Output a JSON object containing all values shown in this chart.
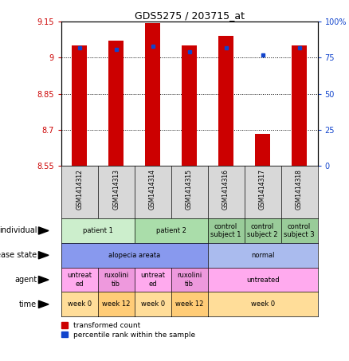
{
  "title": "GDS5275 / 203715_at",
  "samples": [
    "GSM1414312",
    "GSM1414313",
    "GSM1414314",
    "GSM1414315",
    "GSM1414316",
    "GSM1414317",
    "GSM1414318"
  ],
  "transformed_counts": [
    9.05,
    9.07,
    9.145,
    9.05,
    9.09,
    8.685,
    9.05
  ],
  "percentile_ranks": [
    82,
    81,
    83,
    79,
    82,
    77,
    82
  ],
  "ylim_left": [
    8.55,
    9.15
  ],
  "ylim_right": [
    0,
    100
  ],
  "yticks_left": [
    8.55,
    8.7,
    8.85,
    9.0,
    9.15
  ],
  "yticks_right": [
    0,
    25,
    50,
    75,
    100
  ],
  "ytick_labels_left": [
    "8.55",
    "8.7",
    "8.85",
    "9",
    "9.15"
  ],
  "ytick_labels_right": [
    "0",
    "25",
    "50",
    "75",
    "100%"
  ],
  "bar_color": "#cc0000",
  "dot_color": "#1144cc",
  "bar_bottom": 8.55,
  "annotation_rows": [
    {
      "name": "individual",
      "label": "individual",
      "groups": [
        {
          "cols": [
            0,
            1
          ],
          "text": "patient 1",
          "color": "#cceecc"
        },
        {
          "cols": [
            2,
            3
          ],
          "text": "patient 2",
          "color": "#aaddaa"
        },
        {
          "cols": [
            4
          ],
          "text": "control\nsubject 1",
          "color": "#99cc99"
        },
        {
          "cols": [
            5
          ],
          "text": "control\nsubject 2",
          "color": "#99cc99"
        },
        {
          "cols": [
            6
          ],
          "text": "control\nsubject 3",
          "color": "#99cc99"
        }
      ]
    },
    {
      "name": "disease_state",
      "label": "disease state",
      "groups": [
        {
          "cols": [
            0,
            1,
            2,
            3
          ],
          "text": "alopecia areata",
          "color": "#8899ee"
        },
        {
          "cols": [
            4,
            5,
            6
          ],
          "text": "normal",
          "color": "#aabbee"
        }
      ]
    },
    {
      "name": "agent",
      "label": "agent",
      "groups": [
        {
          "cols": [
            0
          ],
          "text": "untreat\ned",
          "color": "#ffaaee"
        },
        {
          "cols": [
            1
          ],
          "text": "ruxolini\ntib",
          "color": "#ee99dd"
        },
        {
          "cols": [
            2
          ],
          "text": "untreat\ned",
          "color": "#ffaaee"
        },
        {
          "cols": [
            3
          ],
          "text": "ruxolini\ntib",
          "color": "#ee99dd"
        },
        {
          "cols": [
            4,
            5,
            6
          ],
          "text": "untreated",
          "color": "#ffaaee"
        }
      ]
    },
    {
      "name": "time",
      "label": "time",
      "groups": [
        {
          "cols": [
            0
          ],
          "text": "week 0",
          "color": "#ffdd99"
        },
        {
          "cols": [
            1
          ],
          "text": "week 12",
          "color": "#ffcc77"
        },
        {
          "cols": [
            2
          ],
          "text": "week 0",
          "color": "#ffdd99"
        },
        {
          "cols": [
            3
          ],
          "text": "week 12",
          "color": "#ffcc77"
        },
        {
          "cols": [
            4,
            5,
            6
          ],
          "text": "week 0",
          "color": "#ffdd99"
        }
      ]
    }
  ],
  "background_color": "#ffffff",
  "grid_color": "#000000",
  "tick_color_left": "#cc0000",
  "tick_color_right": "#1144cc"
}
